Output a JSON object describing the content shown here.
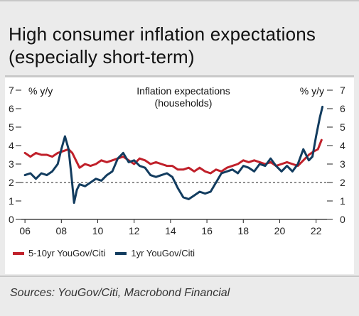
{
  "title": "High consumer inflation expectations\n(especially short-term)",
  "source": "Sources: YouGov/Citi, Macrobond Financial",
  "colors": {
    "red": "#c0202a",
    "navy": "#123c5f",
    "ref": "#222222"
  },
  "chart_data": {
    "type": "line",
    "annotation": "Inflation expectations\n(households)",
    "ylabel_left": "% y/y",
    "ylabel_right": "% y/y",
    "ylim": [
      0,
      7
    ],
    "yticks": [
      0,
      1,
      2,
      3,
      4,
      5,
      6,
      7
    ],
    "xlim": [
      2005.8,
      2022.6
    ],
    "xticks": [
      2006,
      2008,
      2010,
      2012,
      2014,
      2016,
      2018,
      2020,
      2022
    ],
    "xticklabels": [
      "06",
      "08",
      "10",
      "12",
      "14",
      "16",
      "18",
      "20",
      "22"
    ],
    "reference_line": 2,
    "legend": [
      "5-10yr YouGov/Citi",
      "1yr YouGov/Citi"
    ],
    "series": [
      {
        "name": "5-10yr YouGov/Citi",
        "color": "#c0202a",
        "x": [
          2006.0,
          2006.3,
          2006.6,
          2006.9,
          2007.2,
          2007.5,
          2007.8,
          2008.1,
          2008.4,
          2008.6,
          2008.8,
          2009.0,
          2009.3,
          2009.6,
          2009.9,
          2010.2,
          2010.5,
          2010.8,
          2011.1,
          2011.4,
          2011.7,
          2012.0,
          2012.3,
          2012.6,
          2012.9,
          2013.2,
          2013.5,
          2013.8,
          2014.1,
          2014.4,
          2014.7,
          2015.0,
          2015.3,
          2015.6,
          2015.9,
          2016.2,
          2016.5,
          2016.8,
          2017.1,
          2017.4,
          2017.7,
          2018.0,
          2018.3,
          2018.6,
          2018.9,
          2019.2,
          2019.5,
          2019.8,
          2020.1,
          2020.4,
          2020.7,
          2021.0,
          2021.3,
          2021.6,
          2021.9,
          2022.1,
          2022.3
        ],
        "values": [
          3.6,
          3.4,
          3.6,
          3.5,
          3.5,
          3.4,
          3.6,
          3.7,
          3.8,
          3.6,
          3.2,
          2.8,
          3.0,
          2.9,
          3.0,
          3.2,
          3.1,
          3.2,
          3.3,
          3.4,
          3.2,
          3.0,
          3.3,
          3.2,
          3.0,
          3.1,
          3.0,
          2.9,
          2.9,
          2.7,
          2.7,
          2.8,
          2.6,
          2.8,
          2.6,
          2.5,
          2.7,
          2.6,
          2.8,
          2.9,
          3.0,
          3.2,
          3.1,
          3.2,
          3.1,
          3.0,
          3.1,
          2.9,
          3.0,
          3.1,
          3.0,
          2.9,
          3.2,
          3.5,
          3.7,
          3.8,
          4.3
        ]
      },
      {
        "name": "1yr YouGov/Citi",
        "color": "#123c5f",
        "x": [
          2006.0,
          2006.3,
          2006.6,
          2006.9,
          2007.2,
          2007.5,
          2007.8,
          2008.0,
          2008.2,
          2008.4,
          2008.55,
          2008.7,
          2008.85,
          2009.0,
          2009.3,
          2009.6,
          2009.9,
          2010.2,
          2010.5,
          2010.8,
          2011.1,
          2011.4,
          2011.7,
          2012.0,
          2012.3,
          2012.6,
          2012.9,
          2013.2,
          2013.5,
          2013.8,
          2014.1,
          2014.4,
          2014.7,
          2015.0,
          2015.3,
          2015.6,
          2015.9,
          2016.2,
          2016.5,
          2016.8,
          2017.1,
          2017.4,
          2017.7,
          2018.0,
          2018.3,
          2018.6,
          2018.9,
          2019.2,
          2019.5,
          2019.8,
          2020.1,
          2020.4,
          2020.7,
          2021.0,
          2021.3,
          2021.6,
          2021.8,
          2022.0,
          2022.2,
          2022.35
        ],
        "values": [
          2.4,
          2.5,
          2.2,
          2.5,
          2.4,
          2.6,
          3.0,
          3.8,
          4.5,
          3.8,
          2.4,
          0.9,
          1.6,
          1.9,
          1.8,
          2.0,
          2.2,
          2.1,
          2.4,
          2.6,
          3.3,
          3.6,
          3.1,
          3.2,
          2.9,
          2.8,
          2.4,
          2.3,
          2.4,
          2.5,
          2.3,
          1.7,
          1.2,
          1.1,
          1.3,
          1.5,
          1.4,
          1.5,
          2.0,
          2.5,
          2.6,
          2.7,
          2.5,
          2.9,
          2.8,
          2.6,
          3.0,
          2.9,
          3.3,
          2.9,
          2.6,
          2.9,
          2.6,
          3.0,
          3.8,
          3.2,
          3.4,
          4.5,
          5.5,
          6.1
        ]
      }
    ]
  }
}
